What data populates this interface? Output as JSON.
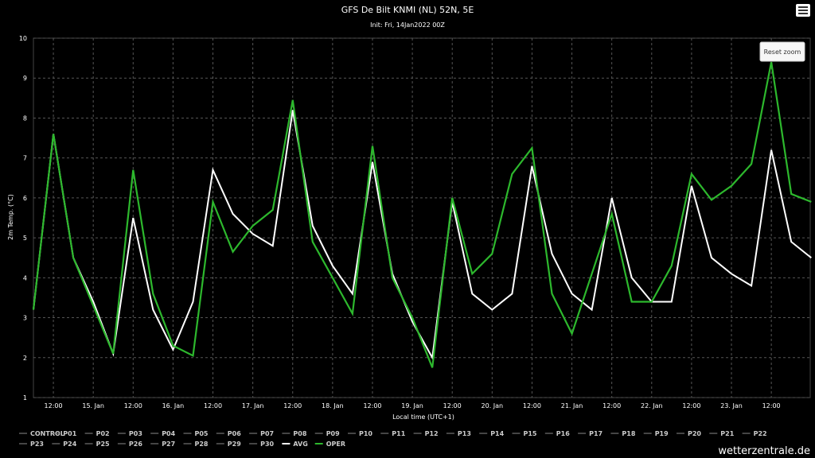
{
  "title": "GFS De Bilt KNMI (NL) 52N, 5E",
  "subtitle": "Init: Fri, 14Jan2022 00Z",
  "reset_zoom_label": "Reset zoom",
  "credit": "wetterzentrale.de",
  "menu_icon": "hamburger-menu-icon",
  "colors": {
    "background": "#000000",
    "oper": "#2db82d",
    "avg": "#ffffff",
    "members": "#8a8a8a",
    "grid": "#555555"
  },
  "chart_data": {
    "type": "line",
    "xlabel": "Local time (UTC+1)",
    "ylabel": "2m Temp. (°C)",
    "ylim": [
      1,
      10
    ],
    "yticks": [
      "1",
      "2",
      "3",
      "4",
      "5",
      "6",
      "7",
      "8",
      "9",
      "10"
    ],
    "x_step_hours": 6,
    "x_tick_labels": [
      "12:00",
      "15. Jan",
      "12:00",
      "16. Jan",
      "12:00",
      "17. Jan",
      "12:00",
      "18. Jan",
      "12:00",
      "19. Jan",
      "12:00",
      "20. Jan",
      "12:00",
      "21. Jan",
      "12:00",
      "22. Jan",
      "12:00",
      "23. Jan",
      "12:00"
    ],
    "grid": true,
    "legend_placement": "bottom",
    "legend": [
      "CONTROL",
      "P01",
      "P02",
      "P03",
      "P04",
      "P05",
      "P06",
      "P07",
      "P08",
      "P09",
      "P10",
      "P11",
      "P12",
      "P13",
      "P14",
      "P15",
      "P16",
      "P17",
      "P18",
      "P19",
      "P20",
      "P21",
      "P22",
      "P23",
      "P24",
      "P25",
      "P26",
      "P27",
      "P28",
      "P29",
      "P30",
      "AVG",
      "OPER"
    ],
    "series": [
      {
        "name": "AVG",
        "values": [
          3.2,
          7.6,
          4.5,
          3.4,
          2.1,
          5.5,
          3.2,
          2.2,
          3.4,
          6.7,
          5.6,
          5.1,
          4.8,
          8.2,
          5.3,
          4.3,
          3.6,
          6.9,
          4.1,
          2.9,
          2.0,
          5.9,
          3.6,
          3.2,
          3.6,
          6.8,
          4.6,
          3.6,
          3.2,
          6.0,
          4.0,
          3.4,
          3.4,
          6.3,
          4.5,
          4.1,
          3.8,
          7.2,
          4.9,
          4.5
        ]
      },
      {
        "name": "OPER",
        "values": [
          3.2,
          7.6,
          4.5,
          3.3,
          2.1,
          6.7,
          3.6,
          2.3,
          2.05,
          5.9,
          4.65,
          5.3,
          5.7,
          8.45,
          4.9,
          4.0,
          3.1,
          7.3,
          4.0,
          3.0,
          1.75,
          6.0,
          4.1,
          4.6,
          6.6,
          7.25,
          3.6,
          2.6,
          4.1,
          5.6,
          3.4,
          3.4,
          4.3,
          6.6,
          5.95,
          6.3,
          6.85,
          9.4,
          6.1,
          5.9
        ]
      }
    ]
  }
}
